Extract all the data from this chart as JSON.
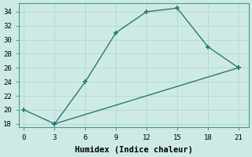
{
  "xlabel": "Humidex (Indice chaleur)",
  "line1_x": [
    0,
    3,
    6,
    9,
    12,
    15,
    18,
    21
  ],
  "line1_y": [
    20,
    18,
    24,
    31,
    34,
    34.5,
    29,
    26
  ],
  "line2_x": [
    3,
    21
  ],
  "line2_y": [
    18,
    26
  ],
  "line_color": "#2a7a6a",
  "bg_color": "#ceeae7",
  "grid_color": "#b8d8d4",
  "spine_color": "#4a9a8a",
  "xlim": [
    -0.5,
    22
  ],
  "ylim": [
    17.5,
    35.2
  ],
  "xticks": [
    0,
    3,
    6,
    9,
    12,
    15,
    18,
    21
  ],
  "yticks": [
    18,
    20,
    22,
    24,
    26,
    28,
    30,
    32,
    34
  ],
  "markersize": 4,
  "linewidth": 1.0,
  "xlabel_fontsize": 7.5,
  "tick_fontsize": 6.5
}
